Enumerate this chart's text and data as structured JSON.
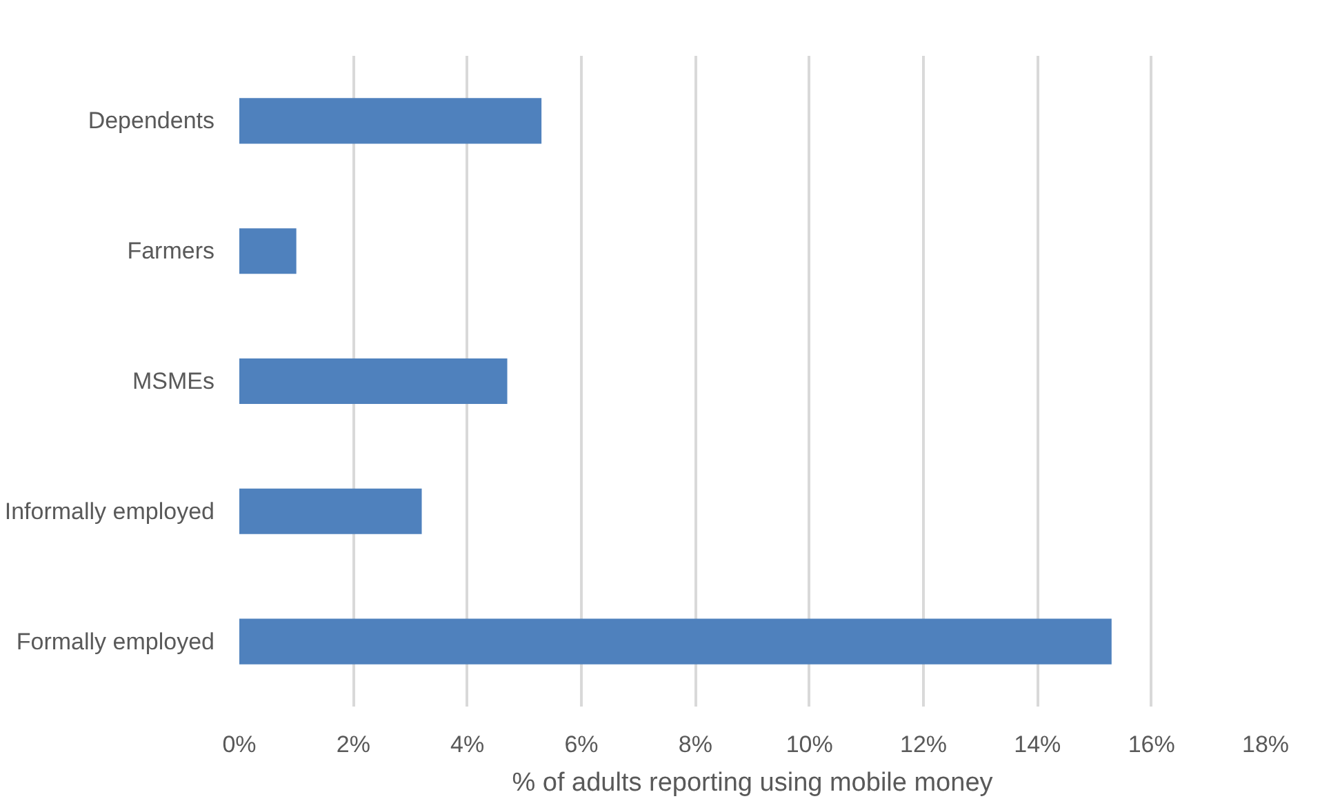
{
  "chart_data": {
    "type": "bar",
    "orientation": "horizontal",
    "categories": [
      "Dependents",
      "Farmers",
      "MSMEs",
      "Informally employed",
      "Formally employed"
    ],
    "values": [
      5.3,
      1.0,
      4.7,
      3.2,
      15.3
    ],
    "color": "#4f81bd",
    "xlabel": "% of adults reporting using mobile money",
    "xlim": [
      0,
      18
    ],
    "xticks": [
      {
        "value": 0,
        "label": "0%"
      },
      {
        "value": 2,
        "label": "2%"
      },
      {
        "value": 4,
        "label": "4%"
      },
      {
        "value": 6,
        "label": "6%"
      },
      {
        "value": 8,
        "label": "8%"
      },
      {
        "value": 10,
        "label": "10%"
      },
      {
        "value": 12,
        "label": "12%"
      },
      {
        "value": 14,
        "label": "14%"
      },
      {
        "value": 16,
        "label": "16%"
      },
      {
        "value": 18,
        "label": "18%"
      }
    ],
    "grid": "x"
  }
}
